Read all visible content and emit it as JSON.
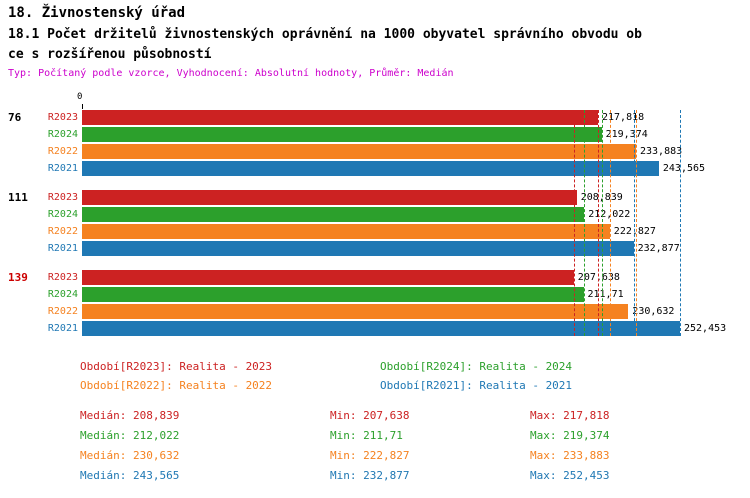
{
  "header": {
    "title": "18. Živnostenský úřad",
    "subtitle_line1": "18.1 Počet držitelů živnostenských oprávnění na 1000 obyvatel správního obvodu ob",
    "subtitle_line2": "ce s rozšířenou působností",
    "meta": "Typ: Počítaný podle vzorce, Vyhodnocení: Absolutní hodnoty, Průměr: Medián"
  },
  "colors": {
    "R2023": "#cc2222",
    "R2024": "#2ca02c",
    "R2022": "#f58220",
    "R2021": "#1f78b4",
    "meta": "#cc00cc"
  },
  "chart_data": {
    "type": "bar",
    "orientation": "horizontal",
    "axis": {
      "zero_label": "0",
      "min": 0,
      "max": 252.453
    },
    "groups": [
      {
        "label": "76",
        "label_color": "#000000",
        "bars": [
          {
            "series": "R2023",
            "value": 217.818,
            "display": "217,818"
          },
          {
            "series": "R2024",
            "value": 219.374,
            "display": "219,374"
          },
          {
            "series": "R2022",
            "value": 233.883,
            "display": "233,883"
          },
          {
            "series": "R2021",
            "value": 243.565,
            "display": "243,565"
          }
        ]
      },
      {
        "label": "111",
        "label_color": "#000000",
        "bars": [
          {
            "series": "R2023",
            "value": 208.839,
            "display": "208,839"
          },
          {
            "series": "R2024",
            "value": 212.022,
            "display": "212,022"
          },
          {
            "series": "R2022",
            "value": 222.827,
            "display": "222,827"
          },
          {
            "series": "R2021",
            "value": 232.877,
            "display": "232,877"
          }
        ]
      },
      {
        "label": "139",
        "label_color": "#cc0000",
        "bars": [
          {
            "series": "R2023",
            "value": 207.638,
            "display": "207,638"
          },
          {
            "series": "R2024",
            "value": 211.71,
            "display": "211,71"
          },
          {
            "series": "R2022",
            "value": 230.632,
            "display": "230,632"
          },
          {
            "series": "R2021",
            "value": 252.453,
            "display": "252,453"
          }
        ]
      }
    ],
    "series_lines": [
      {
        "series": "R2023",
        "min": 207.638,
        "max": 217.818
      },
      {
        "series": "R2024",
        "min": 211.71,
        "max": 219.374
      },
      {
        "series": "R2022",
        "min": 222.827,
        "max": 233.883
      },
      {
        "series": "R2021",
        "min": 232.877,
        "max": 252.453
      }
    ]
  },
  "legend": [
    {
      "series": "R2023",
      "text": "Období[R2023]: Realita - 2023"
    },
    {
      "series": "R2024",
      "text": "Období[R2024]: Realita - 2024"
    },
    {
      "series": "R2022",
      "text": "Období[R2022]: Realita - 2022"
    },
    {
      "series": "R2021",
      "text": "Období[R2021]: Realita - 2021"
    }
  ],
  "stats": [
    {
      "series": "R2023",
      "median": "Medián: 208,839",
      "min": "Min: 207,638",
      "max": "Max: 217,818"
    },
    {
      "series": "R2024",
      "median": "Medián: 212,022",
      "min": "Min: 211,71",
      "max": "Max: 219,374"
    },
    {
      "series": "R2022",
      "median": "Medián: 230,632",
      "min": "Min: 222,827",
      "max": "Max: 233,883"
    },
    {
      "series": "R2021",
      "median": "Medián: 243,565",
      "min": "Min: 232,877",
      "max": "Max: 252,453"
    }
  ]
}
